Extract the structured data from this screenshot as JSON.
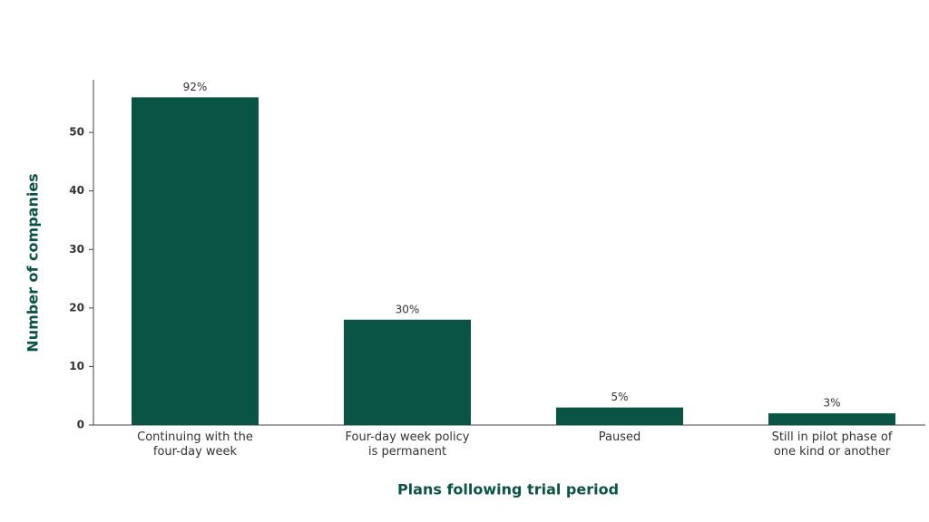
{
  "chart_data": {
    "type": "bar",
    "xlabel": "Plans following trial period",
    "ylabel": "Number of companies",
    "categories": [
      [
        "Continuing with the",
        "four-day week"
      ],
      [
        "Four-day week policy",
        "is permanent"
      ],
      [
        "Paused"
      ],
      [
        "Still in pilot phase of",
        "one kind or another"
      ]
    ],
    "values": [
      56,
      18,
      3,
      2
    ],
    "value_labels": [
      "92%",
      "30%",
      "5%",
      "3%"
    ],
    "color": "#0a5446",
    "ylim": [
      0,
      59
    ],
    "yticks": [
      0,
      10,
      20,
      30,
      40,
      50
    ],
    "grid": false
  }
}
